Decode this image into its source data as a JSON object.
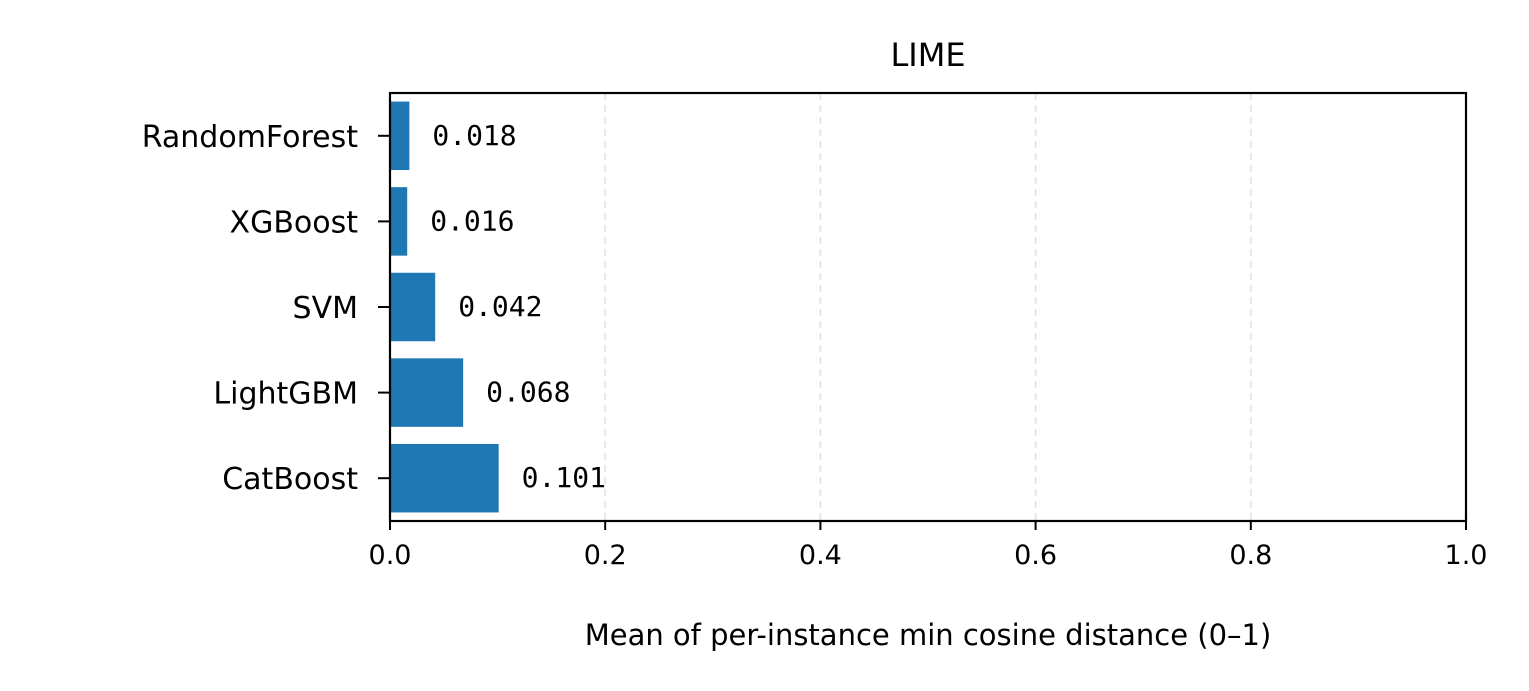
{
  "chart_data": {
    "type": "bar",
    "orientation": "horizontal",
    "title": "LIME",
    "xlabel": "Mean of per-instance min cosine distance (0–1)",
    "ylabel": "",
    "xlim": [
      0,
      1.0
    ],
    "xticks": [
      "0.0",
      "0.2",
      "0.4",
      "0.6",
      "0.8",
      "1.0"
    ],
    "xtick_values": [
      0,
      0.2,
      0.4,
      0.6,
      0.8,
      1.0
    ],
    "grid": "x-axis, dashed",
    "categories": [
      "RandomForest",
      "XGBoost",
      "SVM",
      "LightGBM",
      "CatBoost"
    ],
    "values": [
      0.018,
      0.016,
      0.042,
      0.068,
      0.101
    ],
    "value_labels": [
      "0.018",
      "0.016",
      "0.042",
      "0.068",
      "0.101"
    ],
    "bar_color": "#1f77b4"
  }
}
